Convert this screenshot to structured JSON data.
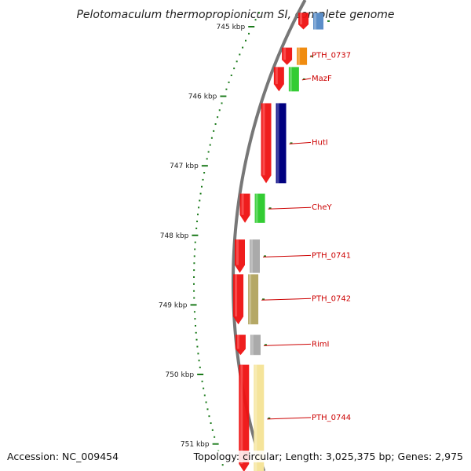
{
  "title": "Pelotomaculum thermopropionicum SI, complete genome",
  "accession": "Accession: NC_009454",
  "topology": "Topology: circular; Length: 3,025,375 bp; Genes: 2,975",
  "colors": {
    "backbone": "#777777",
    "tick": "#1a7a1a",
    "strand_arrow": "#ee1111",
    "label": "#cc0000"
  },
  "scale": {
    "start_kbp": 744.8,
    "end_kbp": 751.4,
    "major_ticks": [
      {
        "kbp": 745,
        "label": "745 kbp"
      },
      {
        "kbp": 746,
        "label": "746 kbp"
      },
      {
        "kbp": 747,
        "label": "747 kbp"
      },
      {
        "kbp": 748,
        "label": "748 kbp"
      },
      {
        "kbp": 749,
        "label": "749 kbp"
      },
      {
        "kbp": 750,
        "label": "750 kbp"
      },
      {
        "kbp": 751,
        "label": "751 kbp"
      }
    ]
  },
  "genes": [
    {
      "start_kbp": 744.8,
      "end_kbp": 745.04,
      "color": "#5b8ec8",
      "label": ""
    },
    {
      "start_kbp": 745.3,
      "end_kbp": 745.55,
      "color": "#f08c10",
      "label": "PTH_0737"
    },
    {
      "start_kbp": 745.58,
      "end_kbp": 745.93,
      "color": "#33cc33",
      "label": "MazF"
    },
    {
      "start_kbp": 746.1,
      "end_kbp": 747.25,
      "color": "#000080",
      "label": "HutI"
    },
    {
      "start_kbp": 747.4,
      "end_kbp": 747.82,
      "color": "#33cc33",
      "label": "CheY"
    },
    {
      "start_kbp": 748.06,
      "end_kbp": 748.54,
      "color": "#aaaaaa",
      "label": "PTH_0741"
    },
    {
      "start_kbp": 748.56,
      "end_kbp": 749.28,
      "color": "#b5a866",
      "label": "PTH_0742"
    },
    {
      "start_kbp": 749.43,
      "end_kbp": 749.72,
      "color": "#aaaaaa",
      "label": "RimI"
    },
    {
      "start_kbp": 749.86,
      "end_kbp": 751.4,
      "color": "#f5e49a",
      "label": "PTH_0744"
    }
  ]
}
